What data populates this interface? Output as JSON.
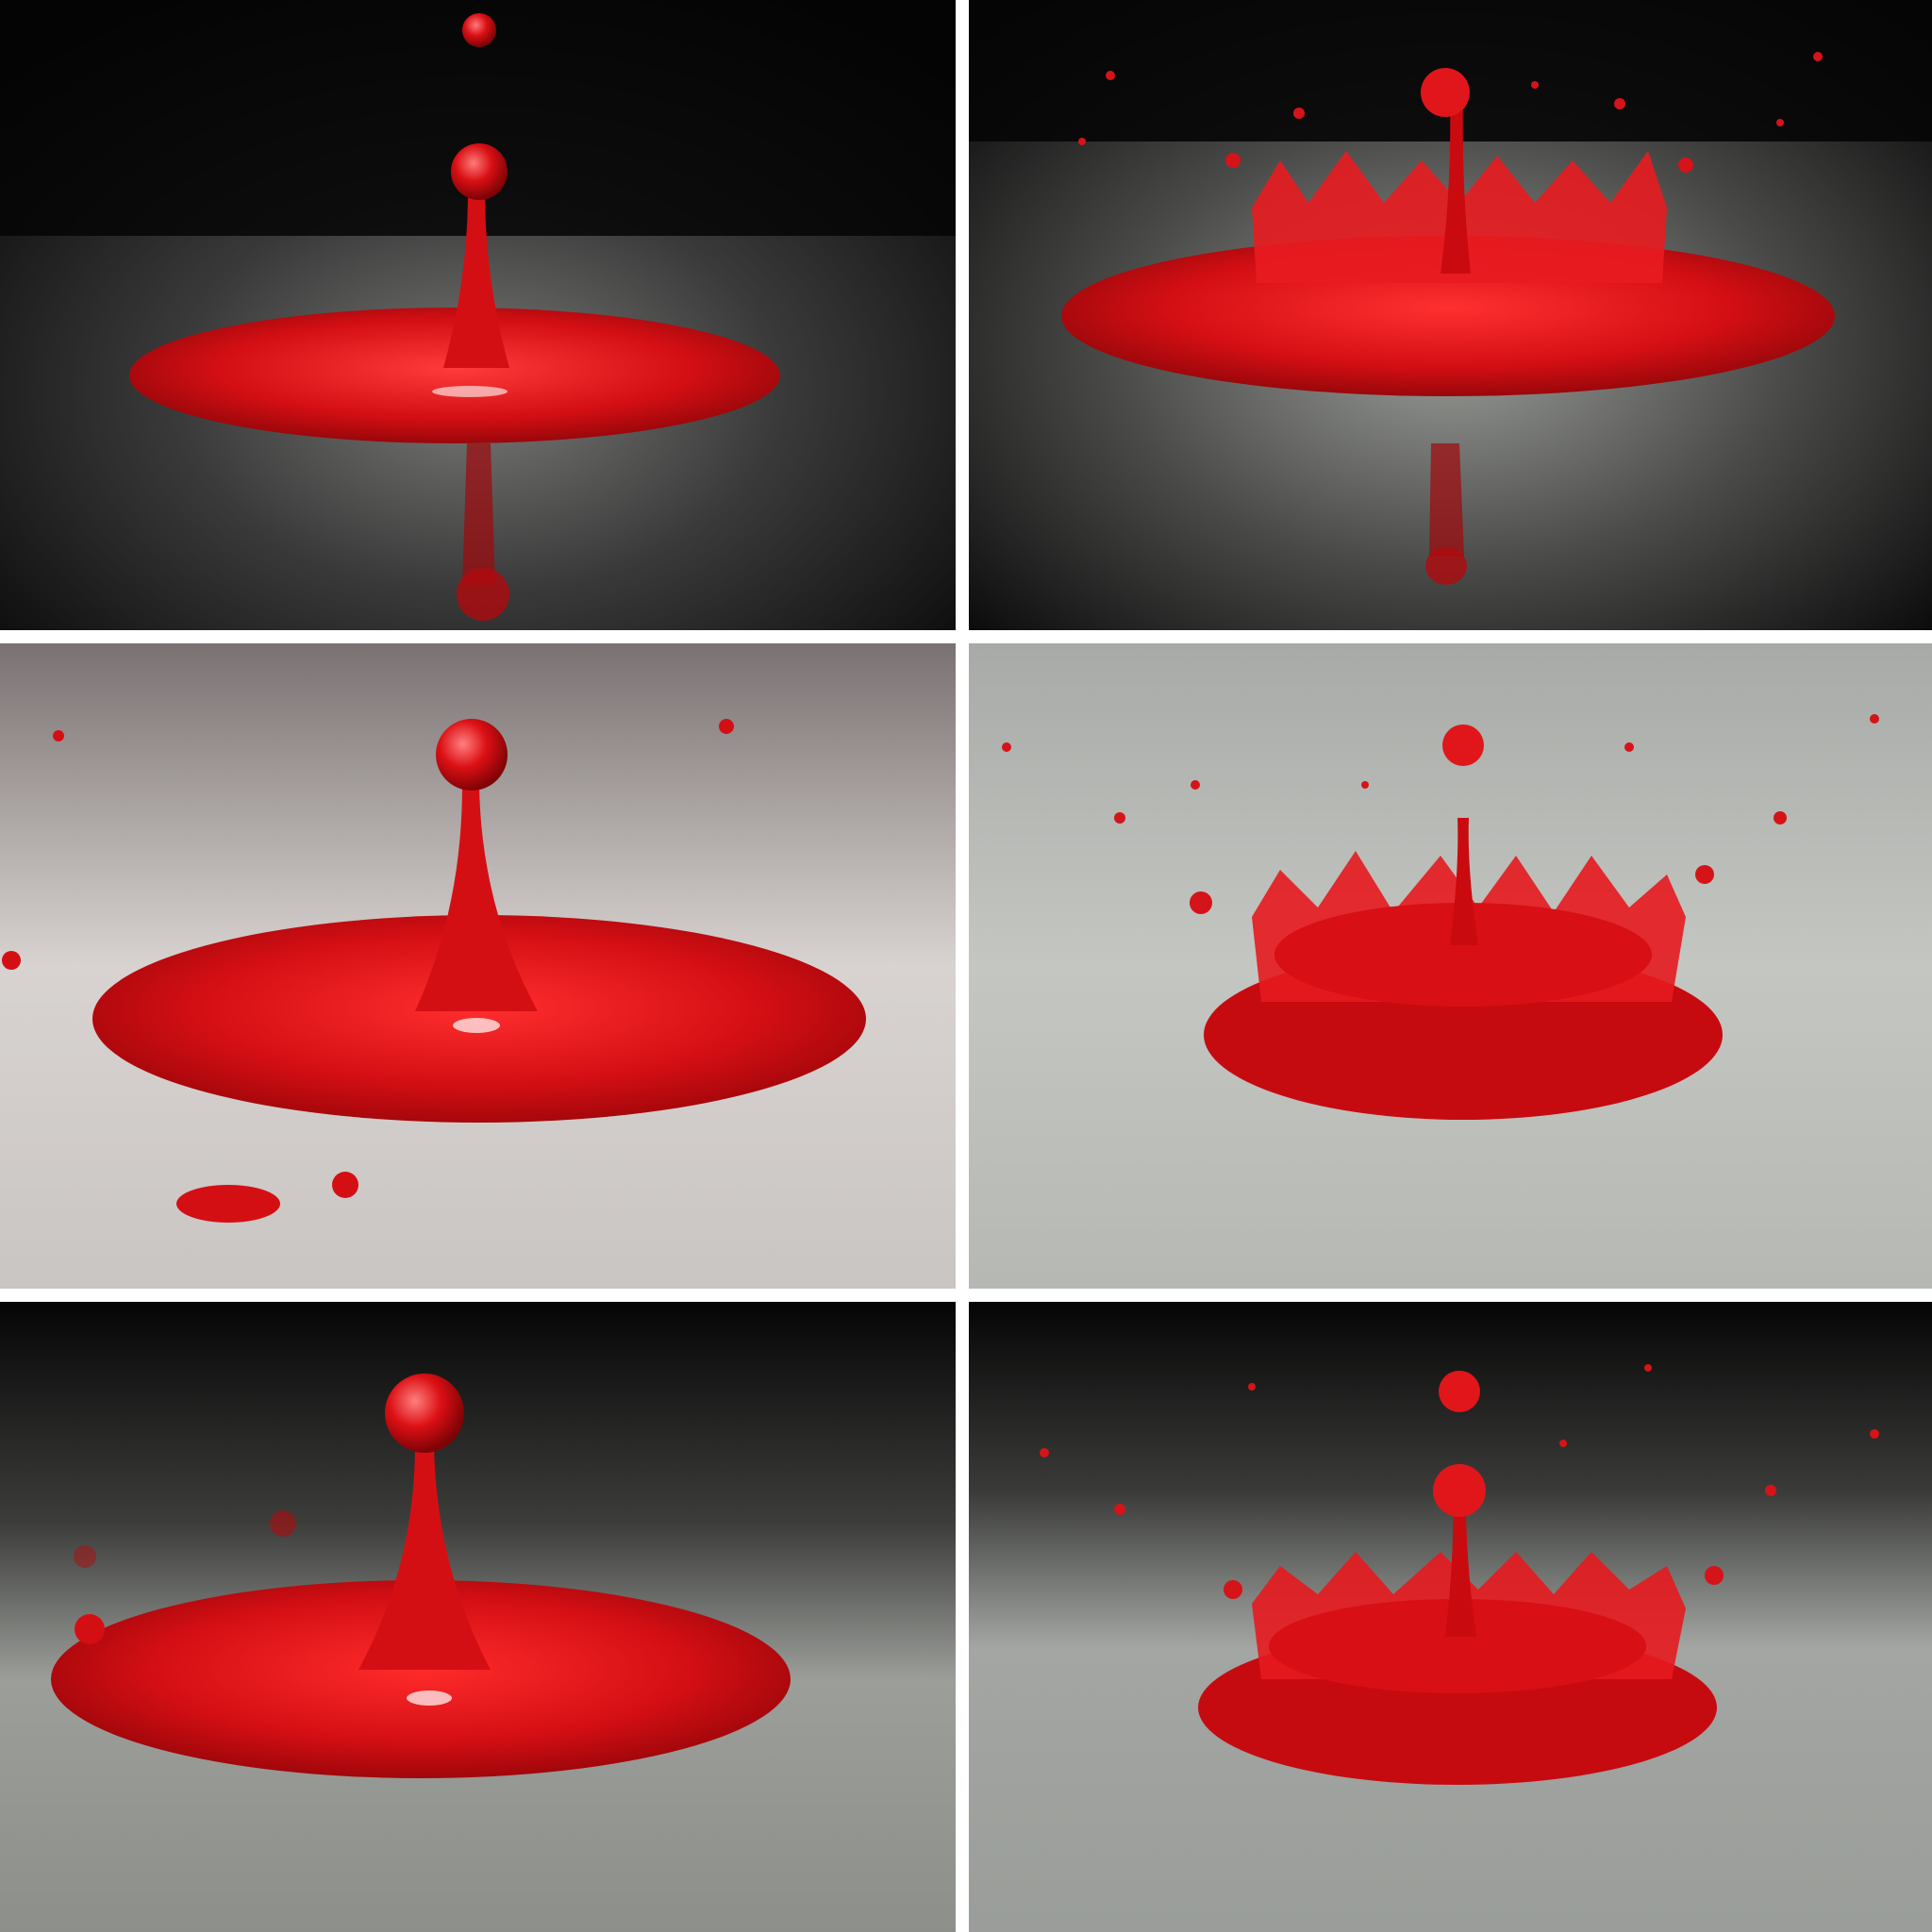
{
  "collage": {
    "columns": 2,
    "rows": 3,
    "separator_color": "#ffffff",
    "liquid_color": "#d40f14",
    "panels": [
      {
        "scene": "falling-drop-with-rising-column",
        "backdrop": "dark",
        "stage": "column"
      },
      {
        "scene": "crown-splash-with-central-column",
        "backdrop": "dark",
        "stage": "crown"
      },
      {
        "scene": "rising-column-with-drop",
        "backdrop": "light",
        "stage": "column"
      },
      {
        "scene": "crown-splash-with-flying-droplets",
        "backdrop": "light-gray",
        "stage": "crown"
      },
      {
        "scene": "rising-column-with-drop",
        "backdrop": "dark-to-gray",
        "stage": "column"
      },
      {
        "scene": "crown-splash-with-falling-drop",
        "backdrop": "dark-to-gray",
        "stage": "crown"
      }
    ]
  }
}
